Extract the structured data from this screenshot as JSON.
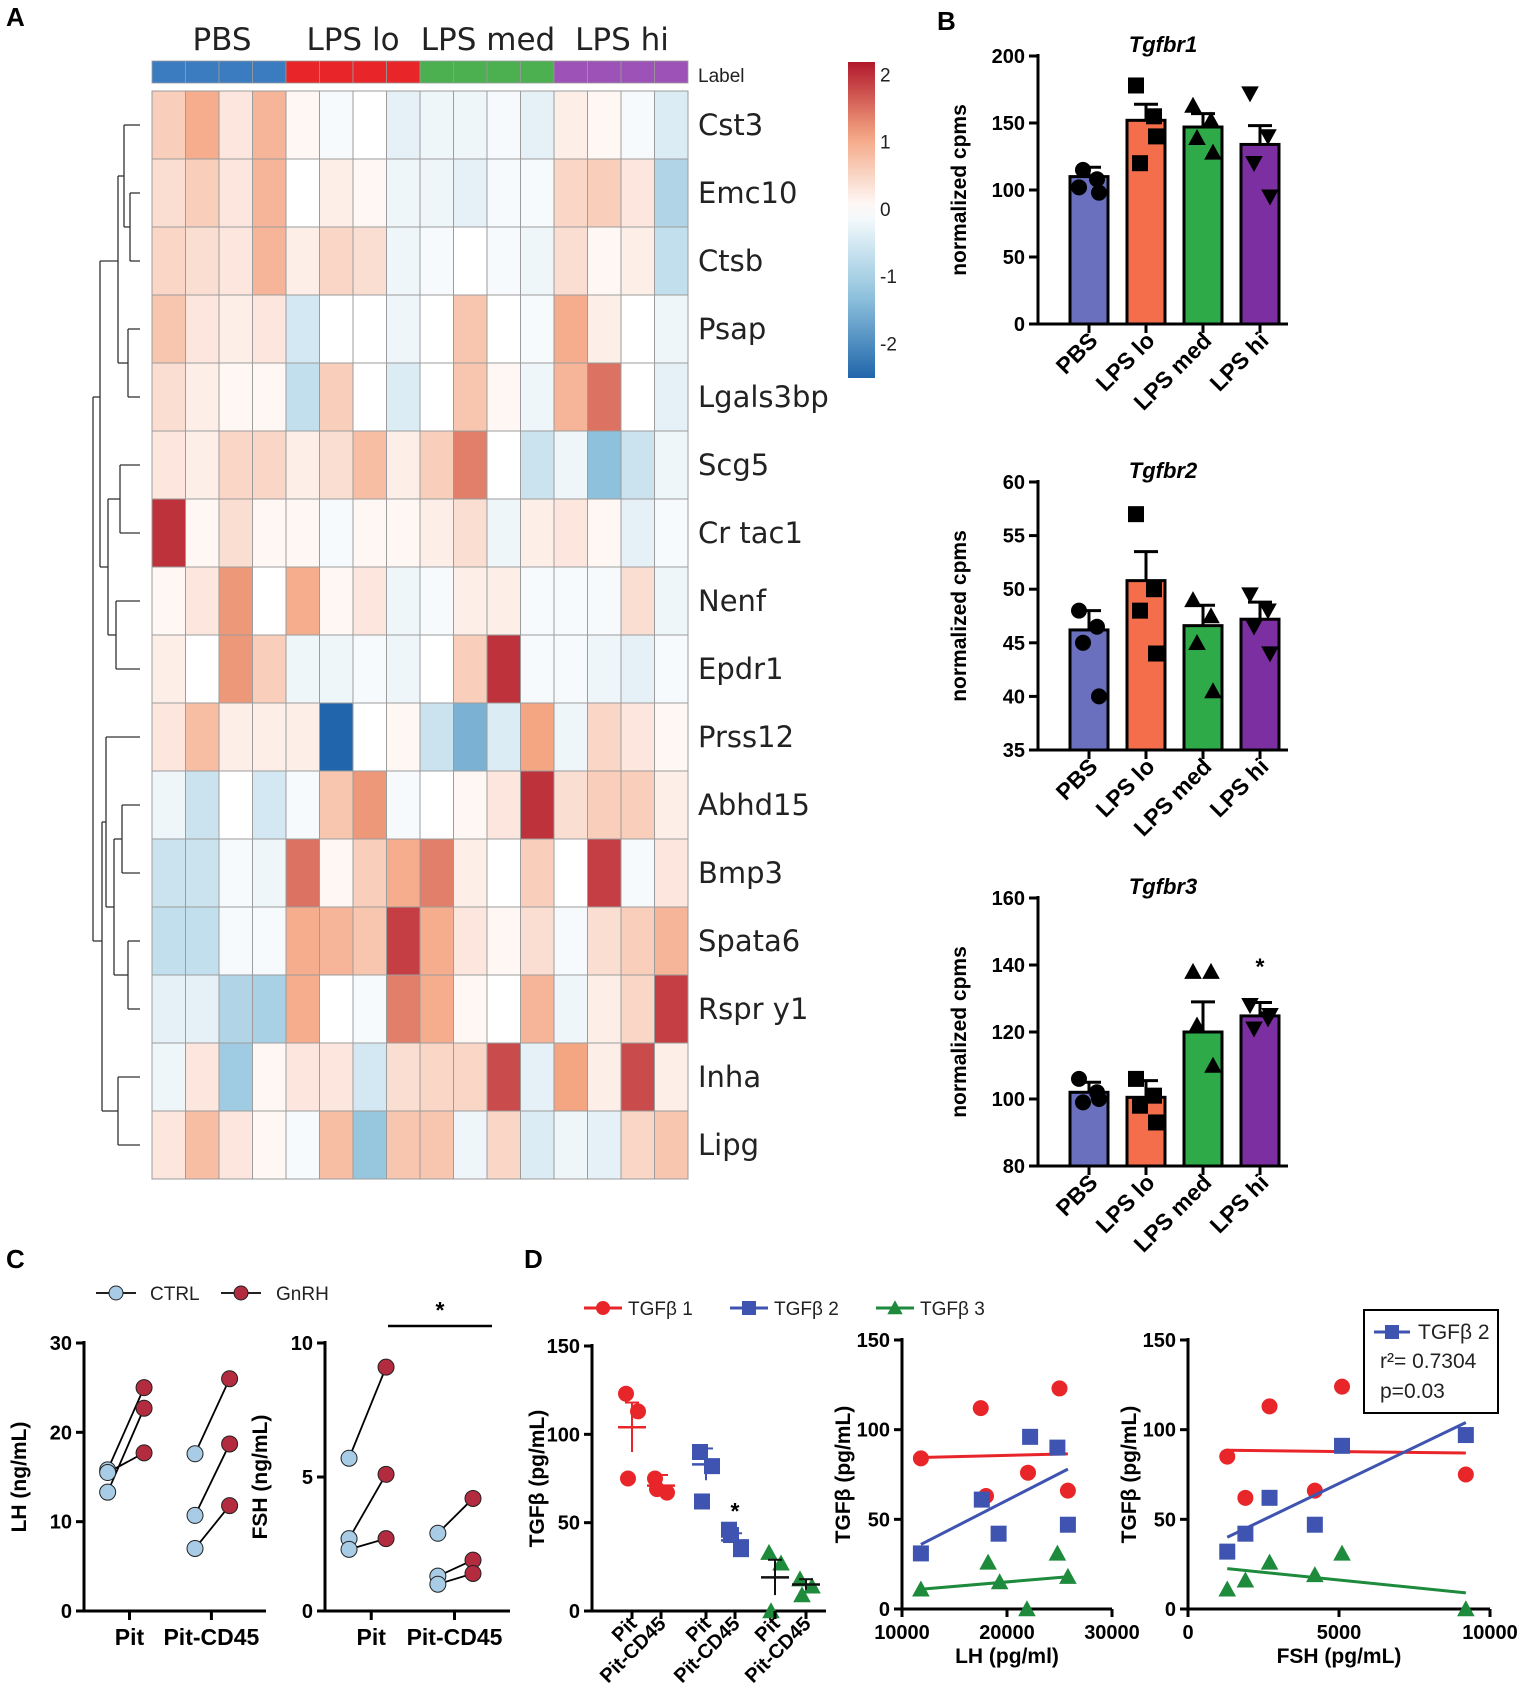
{
  "panel_labels": {
    "A": "A",
    "B": "B",
    "C": "C",
    "D": "D"
  },
  "chart_data": [
    {
      "id": "A",
      "type": "heatmap",
      "group_labels": [
        "PBS",
        "LPS lo",
        "LPS med",
        "LPS hi"
      ],
      "group_colors": [
        "#3b7cc0",
        "#e8262a",
        "#4caf50",
        "#9d52b8"
      ],
      "annotation_label": "Label",
      "rows": [
        "Cst3",
        "Emc10",
        "Ctsb",
        "Psap",
        "Lgals3bp",
        "Scg5",
        "Cr tac1",
        "Nenf",
        "Epdr1",
        "Prss12",
        "Abhd15",
        "Bmp3",
        "Spata6",
        "Rspr y1",
        "Inha",
        "Lipg"
      ],
      "values": [
        [
          0.6,
          1.0,
          0.3,
          0.9,
          0.1,
          -0.1,
          0.0,
          -0.3,
          -0.2,
          -0.2,
          -0.1,
          -0.3,
          0.2,
          0.1,
          -0.1,
          -0.4
        ],
        [
          0.4,
          0.6,
          0.3,
          0.9,
          0.0,
          0.2,
          0.1,
          -0.2,
          -0.2,
          -0.3,
          -0.1,
          -0.1,
          0.5,
          0.6,
          0.3,
          -0.9
        ],
        [
          0.5,
          0.4,
          0.3,
          0.9,
          0.2,
          0.5,
          0.4,
          -0.2,
          -0.1,
          0.0,
          -0.1,
          -0.2,
          0.4,
          0.1,
          0.2,
          -0.7
        ],
        [
          0.7,
          0.3,
          0.2,
          0.3,
          -0.5,
          0.0,
          0.0,
          -0.2,
          0.0,
          0.7,
          0.0,
          -0.1,
          1.0,
          0.2,
          0.0,
          -0.2
        ],
        [
          0.4,
          0.2,
          0.1,
          0.1,
          -0.7,
          0.6,
          0.0,
          -0.4,
          0.0,
          0.7,
          0.1,
          -0.2,
          0.9,
          1.5,
          0.0,
          -0.3
        ],
        [
          0.3,
          0.2,
          0.5,
          0.5,
          0.2,
          0.4,
          0.8,
          0.2,
          0.6,
          1.4,
          0.0,
          -0.6,
          -0.2,
          -1.3,
          -0.6,
          -0.2
        ],
        [
          2.0,
          0.1,
          0.4,
          0.1,
          0.1,
          -0.1,
          0.1,
          0.1,
          0.2,
          0.4,
          -0.2,
          0.2,
          0.3,
          0.1,
          -0.3,
          -0.1
        ],
        [
          0.1,
          0.3,
          1.2,
          0.0,
          1.0,
          0.1,
          0.3,
          -0.2,
          -0.1,
          0.2,
          0.2,
          -0.1,
          -0.1,
          -0.1,
          0.4,
          -0.2
        ],
        [
          0.2,
          0.0,
          1.2,
          0.6,
          -0.2,
          -0.2,
          -0.1,
          -0.2,
          0.0,
          0.6,
          2.0,
          -0.1,
          -0.1,
          -0.2,
          -0.3,
          -0.1
        ],
        [
          0.3,
          0.8,
          0.2,
          0.2,
          0.2,
          -2.5,
          0.0,
          0.1,
          -0.6,
          -1.5,
          -0.4,
          1.1,
          -0.2,
          0.5,
          0.3,
          0.1
        ],
        [
          -0.2,
          -0.6,
          0.0,
          -0.5,
          -0.1,
          0.7,
          1.2,
          -0.1,
          0.0,
          0.1,
          0.3,
          2.0,
          0.4,
          0.6,
          0.6,
          0.2
        ],
        [
          -0.6,
          -0.6,
          -0.1,
          -0.2,
          1.5,
          0.1,
          0.6,
          1.0,
          1.4,
          0.2,
          0.0,
          0.6,
          0.0,
          1.9,
          -0.1,
          0.3
        ],
        [
          -0.7,
          -0.7,
          -0.1,
          -0.1,
          1.0,
          0.9,
          0.7,
          1.9,
          1.0,
          0.3,
          0.1,
          0.4,
          -0.1,
          0.4,
          0.6,
          0.9
        ],
        [
          -0.3,
          -0.3,
          -0.9,
          -1.0,
          1.0,
          0.0,
          -0.1,
          1.4,
          1.0,
          0.1,
          0.0,
          0.9,
          -0.2,
          0.2,
          0.5,
          1.9
        ],
        [
          -0.2,
          0.3,
          -1.1,
          0.1,
          0.3,
          0.3,
          -0.5,
          0.4,
          0.5,
          0.5,
          1.8,
          -0.3,
          1.1,
          0.2,
          1.8,
          0.2
        ],
        [
          0.3,
          0.8,
          0.3,
          0.1,
          -0.1,
          0.8,
          -1.2,
          0.7,
          0.7,
          -0.2,
          0.5,
          -0.4,
          -0.2,
          -0.3,
          0.5,
          0.7
        ]
      ],
      "scale": {
        "min": -2.5,
        "max": 2.2,
        "ticks": [
          "2",
          "1",
          "0",
          "-1",
          "-2"
        ],
        "tick_values": [
          2,
          1,
          0,
          -1,
          -2
        ]
      }
    },
    {
      "id": "B1",
      "type": "bar",
      "title": "Tgfbr1",
      "ylabel": "normalized cpms",
      "categories": [
        "PBS",
        "LPS lo",
        "LPS med",
        "LPS hi"
      ],
      "values": [
        110,
        152,
        147,
        134
      ],
      "errors": [
        7,
        12,
        10,
        14
      ],
      "colors": [
        "#6a6fbe",
        "#f46e4b",
        "#2eaa49",
        "#7b2fa0"
      ],
      "markers": [
        "circle",
        "square",
        "triangle-up",
        "triangle-down"
      ],
      "points": [
        [
          102,
          108,
          115,
          98
        ],
        [
          178,
          155,
          120,
          140
        ],
        [
          163,
          152,
          139,
          128
        ],
        [
          172,
          140,
          120,
          95
        ]
      ],
      "ylim": [
        0,
        200
      ],
      "yticks": [
        "0",
        "50",
        "100",
        "150",
        "200"
      ],
      "ytick_values": [
        0,
        50,
        100,
        150,
        200
      ]
    },
    {
      "id": "B2",
      "type": "bar",
      "title": "Tgfbr2",
      "ylabel": "normalized cpms",
      "categories": [
        "PBS",
        "LPS lo",
        "LPS med",
        "LPS hi"
      ],
      "values": [
        46.2,
        50.8,
        46.6,
        47.2
      ],
      "errors": [
        1.8,
        2.7,
        1.9,
        1.6
      ],
      "colors": [
        "#6a6fbe",
        "#f46e4b",
        "#2eaa49",
        "#7b2fa0"
      ],
      "markers": [
        "circle",
        "square",
        "triangle-up",
        "triangle-down"
      ],
      "points": [
        [
          48,
          46.5,
          45,
          40
        ],
        [
          57,
          50,
          48,
          44
        ],
        [
          49,
          47.5,
          45,
          40.5
        ],
        [
          49.5,
          48,
          46.5,
          44
        ]
      ],
      "ylim": [
        35,
        60
      ],
      "yticks": [
        "35",
        "40",
        "45",
        "50",
        "55",
        "60"
      ],
      "ytick_values": [
        35,
        40,
        45,
        50,
        55,
        60
      ]
    },
    {
      "id": "B3",
      "type": "bar",
      "title": "Tgfbr3",
      "ylabel": "normalized cpms",
      "categories": [
        "PBS",
        "LPS lo",
        "LPS med",
        "LPS hi"
      ],
      "values": [
        102,
        100.5,
        120,
        124.8
      ],
      "errors": [
        3,
        5,
        9,
        4
      ],
      "colors": [
        "#6a6fbe",
        "#f46e4b",
        "#2eaa49",
        "#7b2fa0"
      ],
      "markers": [
        "circle",
        "square",
        "triangle-up",
        "triangle-down"
      ],
      "points": [
        [
          106,
          102,
          99,
          100
        ],
        [
          106,
          101,
          98,
          93
        ],
        [
          138,
          138,
          122,
          110
        ],
        [
          128,
          124,
          121,
          125
        ]
      ],
      "annotation": "*",
      "ylim": [
        80,
        160
      ],
      "yticks": [
        "80",
        "100",
        "120",
        "140",
        "160"
      ],
      "ytick_values": [
        80,
        100,
        120,
        140,
        160
      ]
    },
    {
      "id": "C1",
      "type": "scatter",
      "ylabel": "LH (ng/mL)",
      "legend": [
        {
          "name": "CTRL",
          "color": "#a8cce5"
        },
        {
          "name": "GnRH",
          "color": "#b22b3e"
        }
      ],
      "categories": [
        "Pit",
        "Pit-CD45"
      ],
      "pairs": [
        {
          "group": 0,
          "ctrl": 15.8,
          "gnrh": 25.0
        },
        {
          "group": 0,
          "ctrl": 13.3,
          "gnrh": 22.7
        },
        {
          "group": 0,
          "ctrl": 15.5,
          "gnrh": 17.7
        },
        {
          "group": 1,
          "ctrl": 17.6,
          "gnrh": 26.0
        },
        {
          "group": 1,
          "ctrl": 10.7,
          "gnrh": 18.7
        },
        {
          "group": 1,
          "ctrl": 7.0,
          "gnrh": 11.8
        }
      ],
      "ylim": [
        0,
        30
      ],
      "yticks": [
        "0",
        "10",
        "20",
        "30"
      ],
      "ytick_values": [
        0,
        10,
        20,
        30
      ]
    },
    {
      "id": "C2",
      "type": "scatter",
      "ylabel": "FSH (ng/mL)",
      "categories": [
        "Pit",
        "Pit-CD45"
      ],
      "pairs": [
        {
          "group": 0,
          "ctrl": 5.7,
          "gnrh": 9.1
        },
        {
          "group": 0,
          "ctrl": 2.7,
          "gnrh": 5.1
        },
        {
          "group": 0,
          "ctrl": 2.3,
          "gnrh": 2.7
        },
        {
          "group": 1,
          "ctrl": 2.9,
          "gnrh": 4.2
        },
        {
          "group": 1,
          "ctrl": 1.3,
          "gnrh": 1.9
        },
        {
          "group": 1,
          "ctrl": 1.0,
          "gnrh": 1.4
        }
      ],
      "annotation": "*",
      "ylim": [
        0,
        10
      ],
      "yticks": [
        "0",
        "5",
        "10"
      ],
      "ytick_values": [
        0,
        5,
        10
      ]
    },
    {
      "id": "D1",
      "type": "scatter",
      "ylabel": "TGFβ (pg/mL)",
      "legend": [
        {
          "name": "TGFβ 1",
          "color": "#e8262a",
          "marker": "circle"
        },
        {
          "name": "TGFβ 2",
          "color": "#3e54b0",
          "marker": "square"
        },
        {
          "name": "TGFβ 3",
          "color": "#1e8a3c",
          "marker": "triangle"
        }
      ],
      "categories": [
        "Pit",
        "Pit-CD45",
        "Pit",
        "Pit-CD45",
        "Pit",
        "Pit-CD45"
      ],
      "groups": [
        {
          "series": 0,
          "points": [
            123,
            113,
            75
          ],
          "mean": 104,
          "sem": 14
        },
        {
          "series": 0,
          "points": [
            75,
            67,
            69
          ],
          "mean": 71,
          "sem": 6
        },
        {
          "series": 1,
          "points": [
            90,
            82,
            62
          ],
          "mean": 83,
          "sem": 9
        },
        {
          "series": 1,
          "points": [
            46,
            35,
            43
          ],
          "mean": 40,
          "sem": 4
        },
        {
          "series": 2,
          "points": [
            33,
            27,
            0
          ],
          "mean": 19,
          "sem": 10
        },
        {
          "series": 2,
          "points": [
            18,
            14,
            9
          ],
          "mean": 15,
          "sem": 3
        }
      ],
      "annotation": "*",
      "ylim": [
        0,
        150
      ],
      "yticks": [
        "0",
        "50",
        "100",
        "150"
      ],
      "ytick_values": [
        0,
        50,
        100,
        150
      ]
    },
    {
      "id": "D2",
      "type": "scatter",
      "ylabel": "TGFβ (pg/mL)",
      "xlabel": "LH (pg/ml)",
      "series": [
        {
          "name": "TGFβ 1",
          "color": "#e8262a",
          "points": [
            [
              11800,
              84
            ],
            [
              17500,
              112
            ],
            [
              18000,
              63
            ],
            [
              22000,
              76
            ],
            [
              25000,
              123
            ],
            [
              25800,
              66
            ]
          ],
          "fit": [
            [
              11800,
              84.5
            ],
            [
              25800,
              86.5
            ]
          ]
        },
        {
          "name": "TGFβ 2",
          "color": "#3e54b0",
          "points": [
            [
              11800,
              31
            ],
            [
              17600,
              61
            ],
            [
              19200,
              42
            ],
            [
              22200,
              96
            ],
            [
              24800,
              90
            ],
            [
              25800,
              47
            ]
          ],
          "fit": [
            [
              11800,
              36
            ],
            [
              25800,
              78
            ]
          ]
        },
        {
          "name": "TGFβ 3",
          "color": "#1e8a3c",
          "points": [
            [
              11800,
              11
            ],
            [
              18200,
              26
            ],
            [
              19300,
              15
            ],
            [
              21900,
              0
            ],
            [
              24800,
              31
            ],
            [
              25800,
              18
            ]
          ],
          "fit": [
            [
              11800,
              11
            ],
            [
              25800,
              18
            ]
          ]
        }
      ],
      "xlim": [
        10000,
        30000
      ],
      "ylim": [
        0,
        150
      ],
      "xticks": [
        "10000",
        "20000",
        "30000"
      ],
      "xtick_values": [
        10000,
        20000,
        30000
      ],
      "yticks": [
        "0",
        "50",
        "100",
        "150"
      ],
      "ytick_values": [
        0,
        50,
        100,
        150
      ]
    },
    {
      "id": "D3",
      "type": "scatter",
      "ylabel": "TGFβ (pg/mL)",
      "xlabel": "FSH (pg/mL)",
      "legend_box": {
        "series": "TGFβ 2",
        "r2": "r²= 0.7304",
        "p": "p=0.03"
      },
      "series": [
        {
          "name": "TGFβ 1",
          "color": "#e8262a",
          "points": [
            [
              1300,
              85
            ],
            [
              1900,
              62
            ],
            [
              2700,
              113
            ],
            [
              4200,
              66
            ],
            [
              5100,
              124
            ],
            [
              9200,
              75
            ]
          ],
          "fit": [
            [
              1300,
              88.5
            ],
            [
              9200,
              87
            ]
          ]
        },
        {
          "name": "TGFβ 2",
          "color": "#3e54b0",
          "points": [
            [
              1300,
              32
            ],
            [
              1900,
              42
            ],
            [
              2700,
              62
            ],
            [
              4200,
              47
            ],
            [
              5100,
              91
            ],
            [
              9200,
              97
            ]
          ],
          "fit": [
            [
              1300,
              40
            ],
            [
              9200,
              104
            ]
          ]
        },
        {
          "name": "TGFβ 3",
          "color": "#1e8a3c",
          "points": [
            [
              1300,
              11
            ],
            [
              1900,
              16
            ],
            [
              2700,
              26
            ],
            [
              4200,
              19
            ],
            [
              5100,
              31
            ],
            [
              9200,
              0
            ]
          ],
          "fit": [
            [
              1300,
              22.5
            ],
            [
              9200,
              9
            ]
          ]
        }
      ],
      "xlim": [
        0,
        10000
      ],
      "ylim": [
        0,
        150
      ],
      "xticks": [
        "0",
        "5000",
        "10000"
      ],
      "xtick_values": [
        0,
        5000,
        10000
      ],
      "yticks": [
        "0",
        "50",
        "100",
        "150"
      ],
      "ytick_values": [
        0,
        50,
        100,
        150
      ]
    }
  ]
}
